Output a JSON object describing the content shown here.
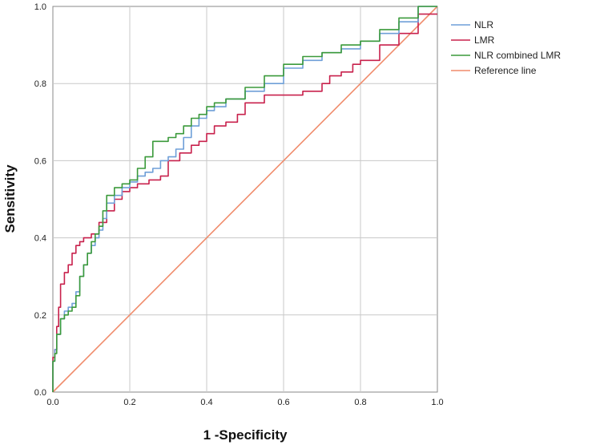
{
  "chart_data": {
    "type": "line",
    "title": "",
    "xlabel": "1 -Specificity",
    "ylabel": "Sensitivity",
    "xlim": [
      0,
      1
    ],
    "ylim": [
      0,
      1
    ],
    "x_ticks": [
      "0.0",
      "0.2",
      "0.4",
      "0.6",
      "0.8",
      "1.0"
    ],
    "y_ticks": [
      "0.0",
      "0.2",
      "0.4",
      "0.6",
      "0.8",
      "1.0"
    ],
    "grid": true,
    "legend_position": "right",
    "series": [
      {
        "name": "NLR",
        "color": "#6f9fd8",
        "x": [
          0,
          0.005,
          0.01,
          0.02,
          0.03,
          0.04,
          0.05,
          0.06,
          0.07,
          0.08,
          0.09,
          0.1,
          0.11,
          0.12,
          0.13,
          0.14,
          0.16,
          0.18,
          0.2,
          0.22,
          0.24,
          0.26,
          0.28,
          0.3,
          0.32,
          0.34,
          0.36,
          0.38,
          0.4,
          0.42,
          0.45,
          0.5,
          0.55,
          0.6,
          0.65,
          0.7,
          0.75,
          0.8,
          0.85,
          0.9,
          0.95,
          1.0
        ],
        "y": [
          0,
          0.08,
          0.11,
          0.15,
          0.19,
          0.21,
          0.22,
          0.23,
          0.26,
          0.3,
          0.33,
          0.36,
          0.38,
          0.4,
          0.42,
          0.45,
          0.49,
          0.51,
          0.53,
          0.545,
          0.56,
          0.57,
          0.58,
          0.6,
          0.61,
          0.63,
          0.66,
          0.69,
          0.71,
          0.73,
          0.74,
          0.76,
          0.78,
          0.8,
          0.84,
          0.86,
          0.88,
          0.89,
          0.91,
          0.93,
          0.96,
          1.0
        ]
      },
      {
        "name": "LMR",
        "color": "#c8214c",
        "x": [
          0,
          0.005,
          0.01,
          0.015,
          0.02,
          0.03,
          0.04,
          0.05,
          0.06,
          0.07,
          0.08,
          0.1,
          0.12,
          0.14,
          0.16,
          0.18,
          0.2,
          0.22,
          0.25,
          0.28,
          0.3,
          0.33,
          0.36,
          0.38,
          0.4,
          0.42,
          0.45,
          0.48,
          0.5,
          0.55,
          0.58,
          0.6,
          0.65,
          0.7,
          0.72,
          0.75,
          0.78,
          0.8,
          0.85,
          0.9,
          0.95,
          1.0
        ],
        "y": [
          0,
          0.09,
          0.11,
          0.17,
          0.22,
          0.28,
          0.31,
          0.33,
          0.36,
          0.38,
          0.39,
          0.4,
          0.41,
          0.44,
          0.47,
          0.5,
          0.52,
          0.53,
          0.54,
          0.55,
          0.56,
          0.6,
          0.62,
          0.64,
          0.65,
          0.67,
          0.69,
          0.7,
          0.72,
          0.75,
          0.77,
          0.77,
          0.77,
          0.78,
          0.8,
          0.82,
          0.83,
          0.85,
          0.86,
          0.9,
          0.93,
          0.98
        ]
      },
      {
        "name": "NLR combined LMR",
        "color": "#3b9a3b",
        "x": [
          0,
          0.005,
          0.01,
          0.02,
          0.03,
          0.04,
          0.05,
          0.06,
          0.07,
          0.08,
          0.09,
          0.1,
          0.11,
          0.12,
          0.13,
          0.14,
          0.16,
          0.18,
          0.2,
          0.22,
          0.24,
          0.26,
          0.27,
          0.28,
          0.3,
          0.32,
          0.34,
          0.36,
          0.38,
          0.4,
          0.42,
          0.45,
          0.5,
          0.55,
          0.6,
          0.65,
          0.7,
          0.75,
          0.8,
          0.85,
          0.9,
          0.95,
          1.0
        ],
        "y": [
          0,
          0.08,
          0.1,
          0.15,
          0.19,
          0.2,
          0.21,
          0.22,
          0.25,
          0.3,
          0.33,
          0.36,
          0.39,
          0.41,
          0.43,
          0.47,
          0.51,
          0.53,
          0.54,
          0.55,
          0.58,
          0.61,
          0.65,
          0.65,
          0.65,
          0.66,
          0.67,
          0.69,
          0.71,
          0.72,
          0.74,
          0.75,
          0.76,
          0.79,
          0.82,
          0.85,
          0.87,
          0.88,
          0.9,
          0.91,
          0.94,
          0.97,
          1.0
        ]
      },
      {
        "name": "Reference line",
        "color": "#f08c6c",
        "x": [
          0,
          1
        ],
        "y": [
          0,
          1
        ]
      }
    ]
  }
}
